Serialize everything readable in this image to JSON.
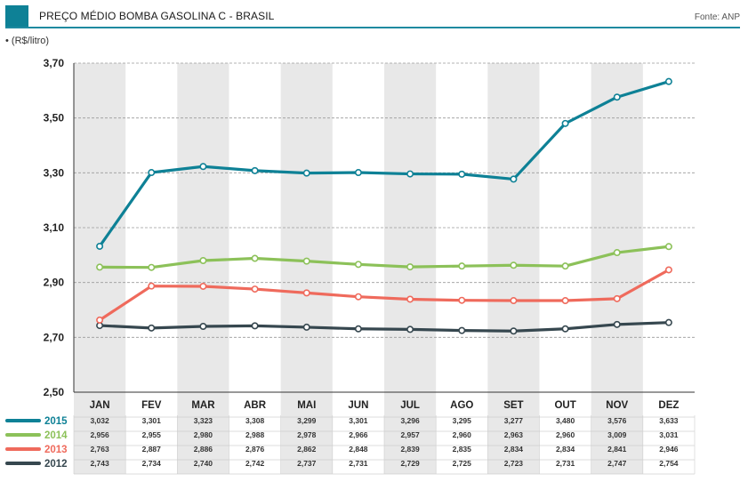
{
  "header": {
    "title": "PREÇO MÉDIO BOMBA GASOLINA C - BRASIL",
    "source": "Fonte: ANP",
    "unit": "• (R$/litro)"
  },
  "colors": {
    "accent": "#0e8196",
    "band": "#e8e8e8"
  },
  "chart_data": {
    "type": "line",
    "categories": [
      "JAN",
      "FEV",
      "MAR",
      "ABR",
      "MAI",
      "JUN",
      "JUL",
      "AGO",
      "SET",
      "OUT",
      "NOV",
      "DEZ"
    ],
    "ylim": [
      2.5,
      3.7
    ],
    "yticks": [
      "2,50",
      "2,70",
      "2,90",
      "3,10",
      "3,30",
      "3,50",
      "3,70"
    ],
    "grid": true,
    "legend_placement": "table-below",
    "series": [
      {
        "name": "2015",
        "color": "#0e8196",
        "values": [
          3.032,
          3.301,
          3.323,
          3.308,
          3.299,
          3.301,
          3.296,
          3.295,
          3.277,
          3.48,
          3.576,
          3.633
        ],
        "labels": [
          "3,032",
          "3,301",
          "3,323",
          "3,308",
          "3,299",
          "3,301",
          "3,296",
          "3,295",
          "3,277",
          "3,480",
          "3,576",
          "3,633"
        ]
      },
      {
        "name": "2014",
        "color": "#8cc159",
        "values": [
          2.956,
          2.955,
          2.98,
          2.988,
          2.978,
          2.966,
          2.957,
          2.96,
          2.963,
          2.96,
          3.009,
          3.031
        ],
        "labels": [
          "2,956",
          "2,955",
          "2,980",
          "2,988",
          "2,978",
          "2,966",
          "2,957",
          "2,960",
          "2,963",
          "2,960",
          "3,009",
          "3,031"
        ]
      },
      {
        "name": "2013",
        "color": "#ef6a5c",
        "values": [
          2.763,
          2.887,
          2.886,
          2.876,
          2.862,
          2.848,
          2.839,
          2.835,
          2.834,
          2.834,
          2.841,
          2.946
        ],
        "labels": [
          "2,763",
          "2,887",
          "2,886",
          "2,876",
          "2,862",
          "2,848",
          "2,839",
          "2,835",
          "2,834",
          "2,834",
          "2,841",
          "2,946"
        ]
      },
      {
        "name": "2012",
        "color": "#36474f",
        "values": [
          2.743,
          2.734,
          2.74,
          2.742,
          2.737,
          2.731,
          2.729,
          2.725,
          2.723,
          2.731,
          2.747,
          2.754
        ],
        "labels": [
          "2,743",
          "2,734",
          "2,740",
          "2,742",
          "2,737",
          "2,731",
          "2,729",
          "2,725",
          "2,723",
          "2,731",
          "2,747",
          "2,754"
        ]
      }
    ]
  }
}
